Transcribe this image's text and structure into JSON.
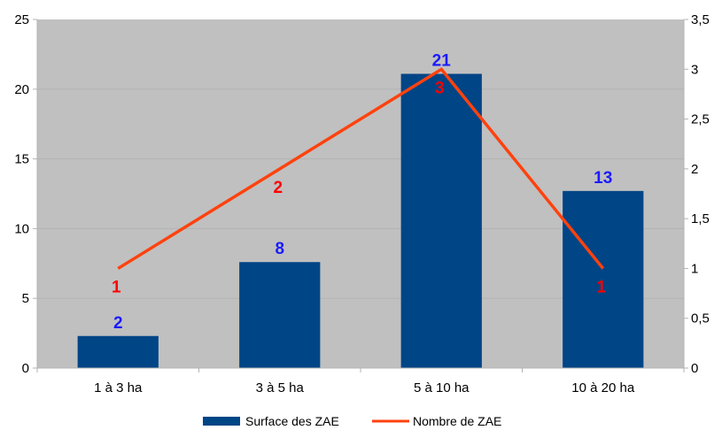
{
  "chart_data": {
    "type": "bar",
    "categories": [
      "1 à 3 ha",
      "3 à 5 ha",
      "5 à 10 ha",
      "10 à 20 ha"
    ],
    "series": [
      {
        "name": "Surface des ZAE",
        "kind": "bar",
        "axis": "left",
        "values": [
          2.3,
          7.6,
          21.1,
          12.7
        ],
        "data_labels": [
          "2",
          "8",
          "21",
          "13"
        ],
        "color": "#004586",
        "label_color": "#1a1aff"
      },
      {
        "name": "Nombre de ZAE",
        "kind": "line",
        "axis": "right",
        "values": [
          1,
          2,
          3,
          1
        ],
        "data_labels": [
          "1",
          "2",
          "3",
          "1"
        ],
        "color": "#ff420e",
        "label_color": "#ff0000"
      }
    ],
    "ylim_left": [
      0,
      25
    ],
    "yticks_left": [
      "0",
      "5",
      "10",
      "15",
      "20",
      "25"
    ],
    "ylim_right": [
      0,
      3.5
    ],
    "yticks_right": [
      "0",
      "0,5",
      "1",
      "1,5",
      "2",
      "2,5",
      "3",
      "3,5"
    ],
    "plot_background": "#c0c0c0",
    "grid": true,
    "grid_color": "#b3b3b3",
    "legend_position": "bottom"
  }
}
